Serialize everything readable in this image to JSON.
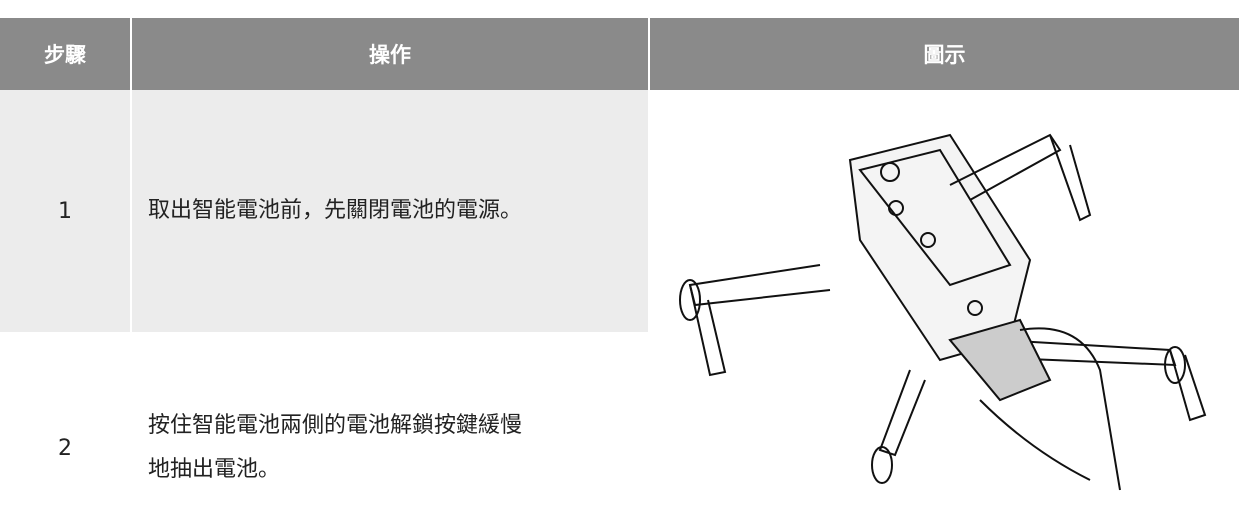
{
  "table": {
    "headers": [
      "步驟",
      "操作",
      "圖示"
    ],
    "rows": [
      [
        "1",
        "取出智能電池前，先關閉電池的電源。"
      ],
      [
        "2",
        "按住智能電池兩側的電池解鎖按鍵緩慢地抽出電池。"
      ]
    ]
  }
}
